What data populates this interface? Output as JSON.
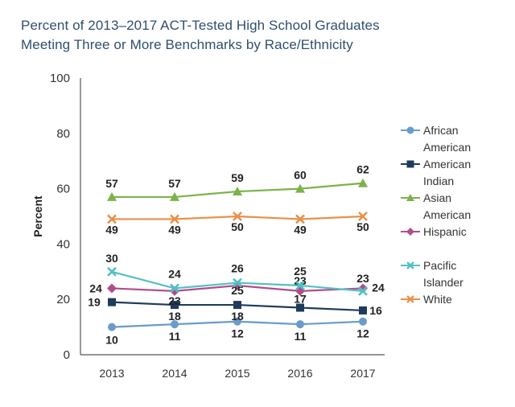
{
  "title_line1": "Percent of 2013–2017 ACT-Tested High School Graduates",
  "title_line2": "Meeting Three or More Benchmarks by Race/Ethnicity",
  "chart_data": {
    "type": "line",
    "title": "Percent of 2013–2017 ACT-Tested High School Graduates Meeting Three or More Benchmarks by Race/Ethnicity",
    "xlabel": "",
    "ylabel": "Percent",
    "ylim": [
      0,
      100
    ],
    "yticks": [
      "0",
      "20",
      "40",
      "60",
      "80",
      "100"
    ],
    "categories": [
      "2013",
      "2014",
      "2015",
      "2016",
      "2017"
    ],
    "grid": false,
    "legend_position": "right",
    "series": [
      {
        "name": "African American",
        "name_lines": [
          "African",
          "American"
        ],
        "values": [
          10,
          11,
          12,
          11,
          12
        ],
        "labels": [
          "10",
          "11",
          "12",
          "11",
          "12"
        ],
        "color": "#6a9cc9",
        "marker": "circle"
      },
      {
        "name": "American Indian",
        "name_lines": [
          "American",
          "Indian"
        ],
        "values": [
          19,
          18,
          18,
          17,
          16
        ],
        "labels": [
          "19",
          "18",
          "18",
          "17",
          "16"
        ],
        "color": "#1f3b5c",
        "marker": "square"
      },
      {
        "name": "Asian American",
        "name_lines": [
          "Asian",
          "American"
        ],
        "values": [
          57,
          57,
          59,
          60,
          62
        ],
        "labels": [
          "57",
          "57",
          "59",
          "60",
          "62"
        ],
        "color": "#7cb24a",
        "marker": "triangle"
      },
      {
        "name": "Hispanic",
        "name_lines": [
          "Hispanic"
        ],
        "values": [
          24,
          23,
          25,
          23,
          24
        ],
        "labels": [
          "24",
          "23",
          "25",
          "23",
          "24"
        ],
        "color": "#b04e8c",
        "marker": "diamond"
      },
      {
        "name": "Pacific Islander",
        "name_lines": [
          "Pacific",
          "Islander"
        ],
        "values": [
          30,
          24,
          26,
          25,
          23
        ],
        "labels": [
          "30",
          "24",
          "26",
          "25",
          "23"
        ],
        "color": "#52c0c4",
        "marker": "x"
      },
      {
        "name": "White",
        "name_lines": [
          "White"
        ],
        "values": [
          49,
          49,
          50,
          49,
          50
        ],
        "labels": [
          "49",
          "49",
          "50",
          "49",
          "50"
        ],
        "color": "#e8904a",
        "marker": "x"
      }
    ]
  }
}
